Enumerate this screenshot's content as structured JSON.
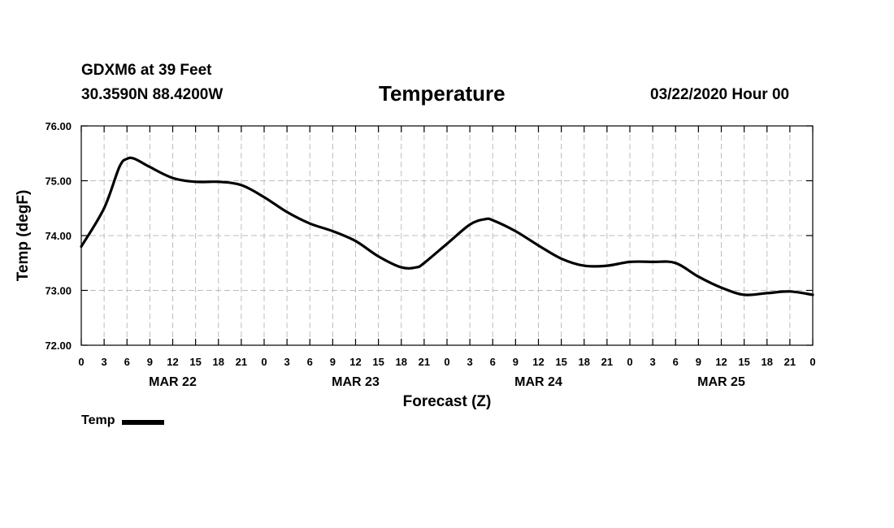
{
  "header": {
    "station": "GDXM6 at 39 Feet",
    "coords": "30.3590N 88.4200W",
    "title": "Temperature",
    "date_info": "03/22/2020 Hour 00"
  },
  "legend": {
    "label": "Temp"
  },
  "chart_data": {
    "type": "line",
    "title": "Temperature",
    "xlabel": "Forecast (Z)",
    "ylabel": "Temp (degF)",
    "ylim": [
      72,
      76
    ],
    "xlim": [
      0,
      96
    ],
    "y_ticks": [
      "72.00",
      "73.00",
      "74.00",
      "75.00",
      "76.00"
    ],
    "x_ticks": [
      "0",
      "3",
      "6",
      "9",
      "12",
      "15",
      "18",
      "21",
      "0",
      "3",
      "6",
      "9",
      "12",
      "15",
      "18",
      "21",
      "0",
      "3",
      "6",
      "9",
      "12",
      "15",
      "18",
      "21",
      "0",
      "3",
      "6",
      "9",
      "12",
      "15",
      "18",
      "21",
      "0"
    ],
    "day_labels": [
      "MAR 22",
      "MAR 23",
      "MAR 24",
      "MAR 25"
    ],
    "grid": true,
    "series": [
      {
        "name": "Temp",
        "x": [
          0,
          3,
          5,
          6,
          7,
          9,
          12,
          15,
          18,
          21,
          24,
          27,
          30,
          33,
          36,
          39,
          42,
          44,
          45,
          48,
          51,
          53,
          54,
          57,
          60,
          63,
          66,
          69,
          72,
          75,
          78,
          81,
          84,
          87,
          90,
          93,
          96
        ],
        "values": [
          73.8,
          74.5,
          75.25,
          75.4,
          75.4,
          75.25,
          75.05,
          74.98,
          74.98,
          74.92,
          74.7,
          74.43,
          74.22,
          74.08,
          73.9,
          73.62,
          73.42,
          73.42,
          73.5,
          73.85,
          74.2,
          74.3,
          74.28,
          74.08,
          73.82,
          73.58,
          73.45,
          73.45,
          73.52,
          73.52,
          73.5,
          73.25,
          73.05,
          72.92,
          72.95,
          72.98,
          72.92
        ]
      }
    ]
  }
}
